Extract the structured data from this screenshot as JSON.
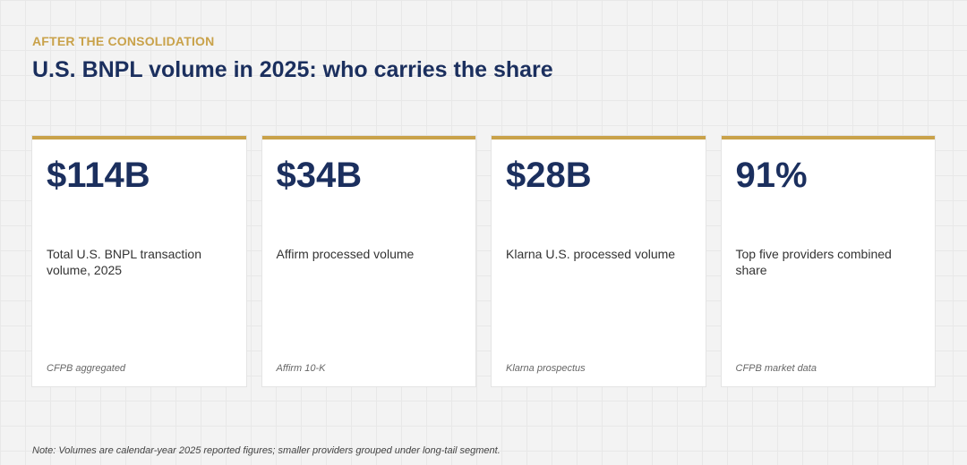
{
  "header": {
    "eyebrow": "AFTER THE CONSOLIDATION",
    "title": "U.S. BNPL volume in 2025: who carries the share"
  },
  "cards": [
    {
      "value": "$114B",
      "label": "Total U.S. BNPL transaction volume, 2025",
      "source": "CFPB aggregated"
    },
    {
      "value": "$34B",
      "label": "Affirm processed volume",
      "source": "Affirm 10-K"
    },
    {
      "value": "$28B",
      "label": "Klarna U.S. processed volume",
      "source": "Klarna prospectus"
    },
    {
      "value": "91%",
      "label": "Top five providers combined share",
      "source": "CFPB market data"
    }
  ],
  "footer": {
    "note": "Note: Volumes are calendar-year 2025 reported figures; smaller providers grouped under long-tail segment."
  },
  "colors": {
    "accent": "#c9a24a",
    "navy": "#1b2f5e"
  }
}
